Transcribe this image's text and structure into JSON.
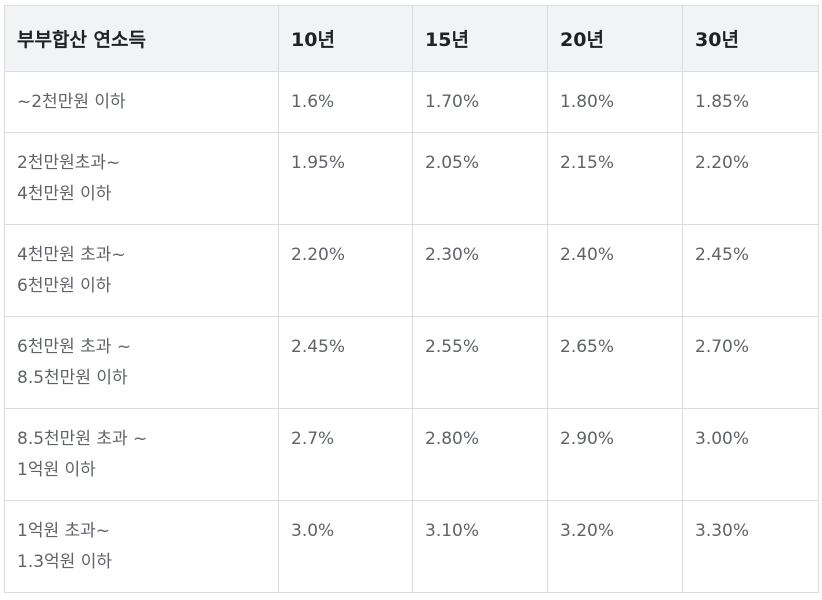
{
  "table": {
    "headers": [
      "부부합산 연소득",
      "10년",
      "15년",
      "20년",
      "30년"
    ],
    "rows": [
      {
        "income": [
          "~2천만원 이하"
        ],
        "rates": [
          "1.6%",
          "1.70%",
          "1.80%",
          "1.85%"
        ]
      },
      {
        "income": [
          "2천만원초과~",
          "4천만원 이하"
        ],
        "rates": [
          "1.95%",
          "2.05%",
          "2.15%",
          "2.20%"
        ]
      },
      {
        "income": [
          "4천만원 초과~",
          "6천만원 이하"
        ],
        "rates": [
          "2.20%",
          "2.30%",
          "2.40%",
          "2.45%"
        ]
      },
      {
        "income": [
          "6천만원 초과 ~",
          "8.5천만원 이하"
        ],
        "rates": [
          "2.45%",
          "2.55%",
          "2.65%",
          "2.70%"
        ]
      },
      {
        "income": [
          "8.5천만원 초과 ~",
          "1억원 이하"
        ],
        "rates": [
          "2.7%",
          "2.80%",
          "2.90%",
          "3.00%"
        ]
      },
      {
        "income": [
          "1억원 초과~",
          "1.3억원 이하"
        ],
        "rates": [
          "3.0%",
          "3.10%",
          "3.20%",
          "3.30%"
        ]
      }
    ]
  }
}
